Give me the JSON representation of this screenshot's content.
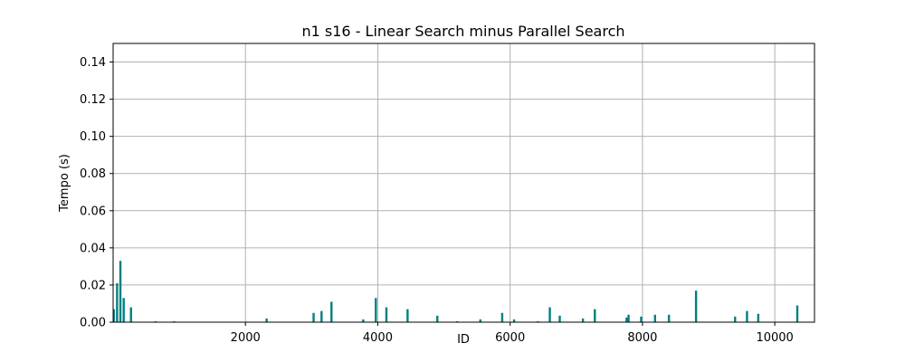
{
  "chart_data": {
    "type": "bar",
    "title": "n1 s16 - Linear Search minus Parallel Search",
    "xlabel": "ID",
    "ylabel": "Tempo (s)",
    "xlim": [
      0,
      10600
    ],
    "ylim": [
      0,
      0.15
    ],
    "xticks": [
      2000,
      4000,
      6000,
      8000,
      10000
    ],
    "yticks": [
      0.0,
      0.02,
      0.04,
      0.06,
      0.08,
      0.1,
      0.12,
      0.14
    ],
    "xtick_labels": [
      "2000",
      "4000",
      "6000",
      "8000",
      "10000"
    ],
    "ytick_labels": [
      "0.00",
      "0.02",
      "0.04",
      "0.06",
      "0.08",
      "0.10",
      "0.12",
      "0.14"
    ],
    "grid": true,
    "bar_color": "#008080",
    "x": [
      10,
      60,
      110,
      160,
      270,
      640,
      920,
      2320,
      3030,
      3150,
      3300,
      3780,
      3970,
      4130,
      4450,
      4900,
      5200,
      5550,
      5880,
      6060,
      6420,
      6600,
      6750,
      7100,
      7280,
      7760,
      7790,
      7980,
      8190,
      8400,
      8810,
      9400,
      9580,
      9750,
      10340
    ],
    "values": [
      0.007,
      0.021,
      0.033,
      0.013,
      0.008,
      0.0005,
      0.0005,
      0.002,
      0.005,
      0.006,
      0.011,
      0.0015,
      0.013,
      0.008,
      0.007,
      0.0035,
      0.0005,
      0.0015,
      0.005,
      0.0015,
      0.0005,
      0.008,
      0.0035,
      0.002,
      0.007,
      0.0025,
      0.004,
      0.003,
      0.004,
      0.004,
      0.017,
      0.003,
      0.006,
      0.0045,
      0.009
    ]
  }
}
